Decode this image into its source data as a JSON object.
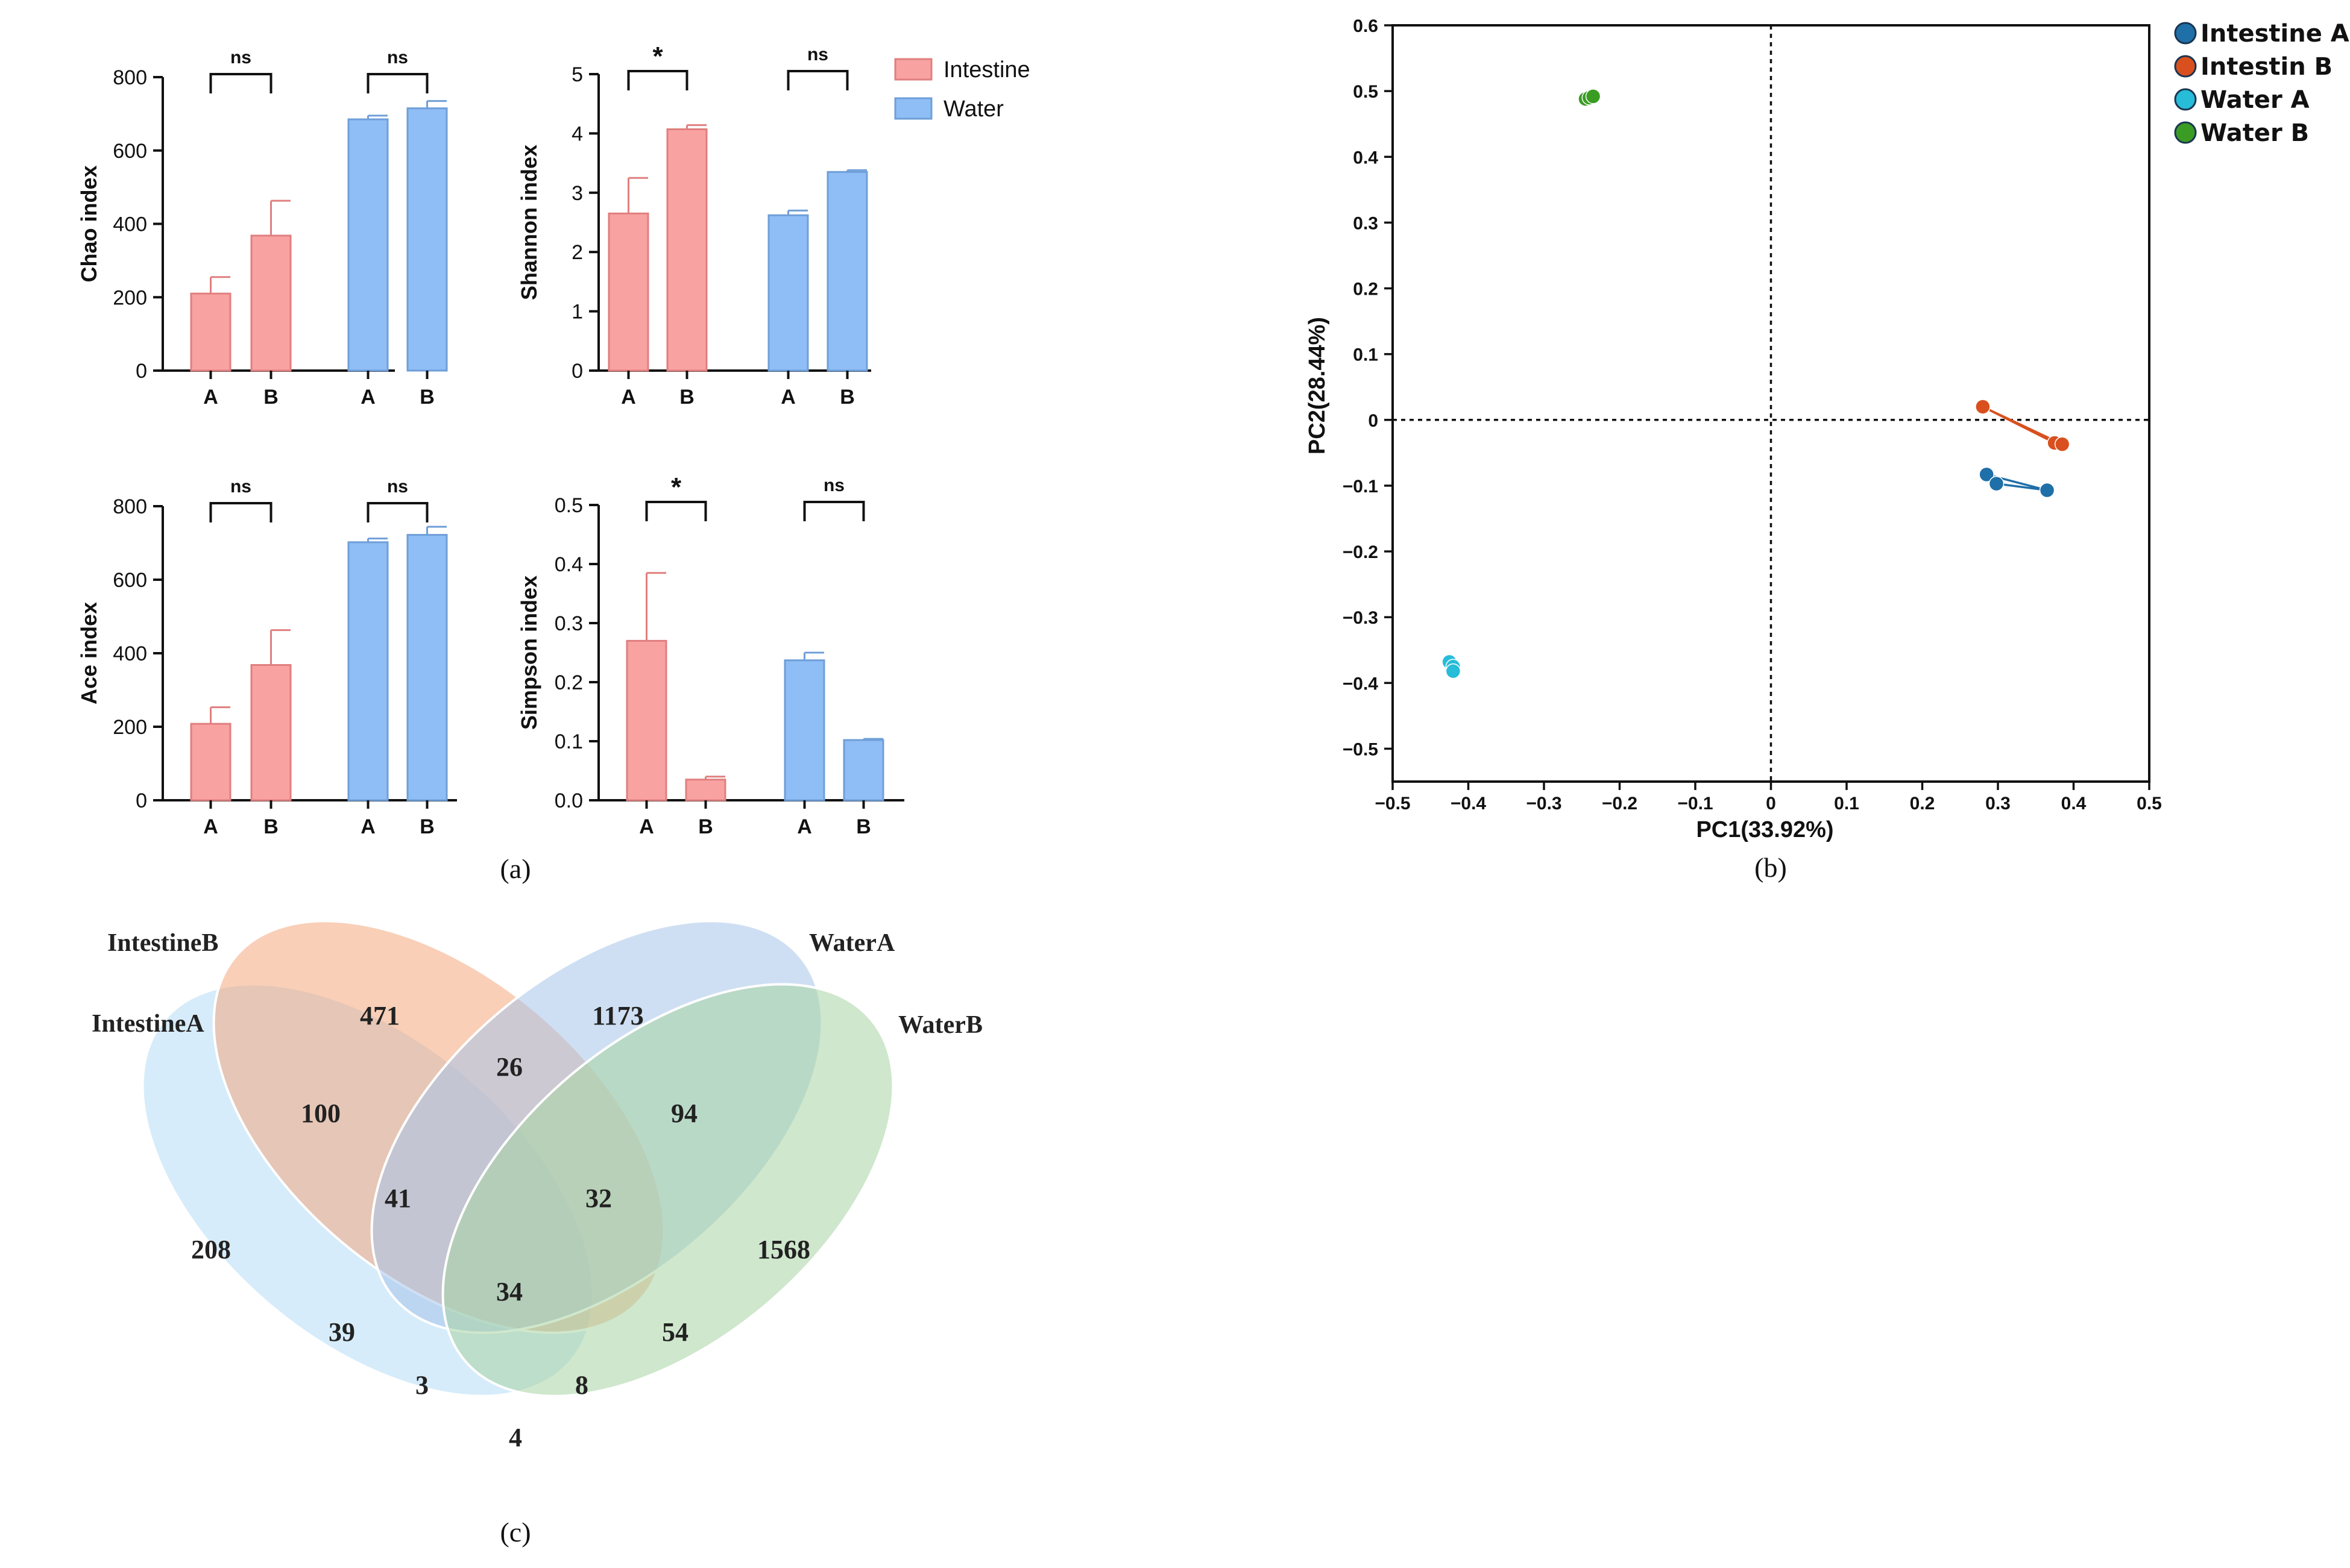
{
  "chart_data": [
    {
      "id": "chao",
      "type": "bar",
      "panel": "a",
      "ylabel": "Chao index",
      "ylim": [
        0,
        800
      ],
      "yticks": [
        0,
        200,
        400,
        600,
        800
      ],
      "groups": [
        {
          "series": "Intestine",
          "categories": [
            "A",
            "B"
          ],
          "values": [
            210,
            368
          ],
          "errors": [
            45,
            95
          ],
          "significance": "ns"
        },
        {
          "series": "Water",
          "categories": [
            "A",
            "B"
          ],
          "values": [
            685,
            715
          ],
          "errors": [
            10,
            20
          ],
          "significance": "ns"
        }
      ]
    },
    {
      "id": "shannon",
      "type": "bar",
      "panel": "a",
      "ylabel": "Shannon index",
      "ylim": [
        0,
        5
      ],
      "yticks": [
        0,
        1,
        2,
        3,
        4,
        5
      ],
      "groups": [
        {
          "series": "Intestine",
          "categories": [
            "A",
            "B"
          ],
          "values": [
            2.65,
            4.07
          ],
          "errors": [
            0.6,
            0.07
          ],
          "significance": "*"
        },
        {
          "series": "Water",
          "categories": [
            "A",
            "B"
          ],
          "values": [
            2.62,
            3.35
          ],
          "errors": [
            0.08,
            0.03
          ],
          "significance": "ns"
        }
      ]
    },
    {
      "id": "ace",
      "type": "bar",
      "panel": "a",
      "ylabel": "Ace index",
      "ylim": [
        0,
        800
      ],
      "yticks": [
        0,
        200,
        400,
        600,
        800
      ],
      "groups": [
        {
          "series": "Intestine",
          "categories": [
            "A",
            "B"
          ],
          "values": [
            208,
            368
          ],
          "errors": [
            45,
            95
          ],
          "significance": "ns"
        },
        {
          "series": "Water",
          "categories": [
            "A",
            "B"
          ],
          "values": [
            702,
            722
          ],
          "errors": [
            10,
            22
          ],
          "significance": "ns"
        }
      ]
    },
    {
      "id": "simpson",
      "type": "bar",
      "panel": "a",
      "ylabel": "Simpson index",
      "ylim": [
        0,
        0.5
      ],
      "yticks": [
        0.0,
        0.1,
        0.2,
        0.3,
        0.4,
        0.5
      ],
      "yticklabels": [
        "0.0",
        "0.1",
        "0.2",
        "0.3",
        "0.4",
        "0.5"
      ],
      "groups": [
        {
          "series": "Intestine",
          "categories": [
            "A",
            "B"
          ],
          "values": [
            0.27,
            0.035
          ],
          "errors": [
            0.115,
            0.005
          ],
          "significance": "*"
        },
        {
          "series": "Water",
          "categories": [
            "A",
            "B"
          ],
          "values": [
            0.237,
            0.102
          ],
          "errors": [
            0.013,
            0.002
          ],
          "significance": "ns"
        }
      ]
    },
    {
      "id": "pcoa",
      "type": "scatter",
      "panel": "b",
      "xlabel": "PC1(33.92%)",
      "ylabel": "PC2(28.44%)",
      "xlim": [
        -0.5,
        0.5
      ],
      "ylim": [
        -0.55,
        0.6
      ],
      "xticks": [
        -0.5,
        -0.4,
        -0.3,
        -0.2,
        -0.1,
        0,
        0.1,
        0.2,
        0.3,
        0.4,
        0.5
      ],
      "xticklabels": [
        "−0.5",
        "−0.4",
        "−0.3",
        "−0.2",
        "−0.1",
        "0",
        "0.1",
        "0.2",
        "0.3",
        "0.4",
        "0.5"
      ],
      "yticks": [
        -0.5,
        -0.4,
        -0.3,
        -0.2,
        -0.1,
        0,
        0.1,
        0.2,
        0.3,
        0.4,
        0.5,
        0.6
      ],
      "yticklabels": [
        "−0.5",
        "−0.4",
        "−0.3",
        "−0.2",
        "−0.1",
        "0",
        "0.1",
        "0.2",
        "0.3",
        "0.4",
        "0.5",
        "0.6"
      ],
      "series": [
        {
          "name": "Intestine A",
          "color": "#1f6fa8",
          "points": [
            [
              0.285,
              -0.083
            ],
            [
              0.298,
              -0.097
            ],
            [
              0.365,
              -0.107
            ]
          ]
        },
        {
          "name": "Intestin B",
          "color": "#d9501e",
          "points": [
            [
              0.28,
              0.02
            ],
            [
              0.375,
              -0.035
            ],
            [
              0.385,
              -0.037
            ]
          ]
        },
        {
          "name": "Water A",
          "color": "#27bcd8",
          "points": [
            [
              -0.425,
              -0.368
            ],
            [
              -0.42,
              -0.375
            ],
            [
              -0.42,
              -0.382
            ]
          ]
        },
        {
          "name": "Water B",
          "color": "#3a9c23",
          "points": [
            [
              -0.245,
              0.488
            ],
            [
              -0.24,
              0.49
            ],
            [
              -0.235,
              0.492
            ]
          ]
        }
      ]
    }
  ],
  "legend_a": [
    {
      "name": "Intestine",
      "color": "#f8a2a2"
    },
    {
      "name": "Water",
      "color": "#8fbdf5"
    }
  ],
  "panel_labels": {
    "a": "(a)",
    "b": "(b)",
    "c": "(c)"
  },
  "venn": {
    "sets": [
      {
        "name": "IntestineA",
        "color": "#b5dcf5"
      },
      {
        "name": "IntestineB",
        "color": "#f4a77e"
      },
      {
        "name": "WaterA",
        "color": "#a8c4ea"
      },
      {
        "name": "WaterB",
        "color": "#a7d4a2"
      }
    ],
    "regions": [
      {
        "sets": "IntestineB",
        "value": "471"
      },
      {
        "sets": "WaterA",
        "value": "1173"
      },
      {
        "sets": "IntestineA",
        "value": "208"
      },
      {
        "sets": "WaterB",
        "value": "1568"
      },
      {
        "sets": "IntestineA∩IntestineB",
        "value": "100"
      },
      {
        "sets": "IntestineB∩WaterA",
        "value": "26"
      },
      {
        "sets": "WaterA∩WaterB",
        "value": "94"
      },
      {
        "sets": "IntestineA∩IntestineB∩WaterA",
        "value": "41"
      },
      {
        "sets": "IntestineB∩WaterA∩WaterB",
        "value": "32"
      },
      {
        "sets": "all",
        "value": "34"
      },
      {
        "sets": "IntestineA∩WaterA",
        "value": "39"
      },
      {
        "sets": "IntestineB∩WaterB",
        "value": "54"
      },
      {
        "sets": "IntestineA∩WaterA∩WaterB",
        "value": "3"
      },
      {
        "sets": "IntestineA∩IntestineB∩WaterB",
        "value": "8"
      },
      {
        "sets": "IntestineA∩WaterB",
        "value": "4"
      }
    ]
  }
}
